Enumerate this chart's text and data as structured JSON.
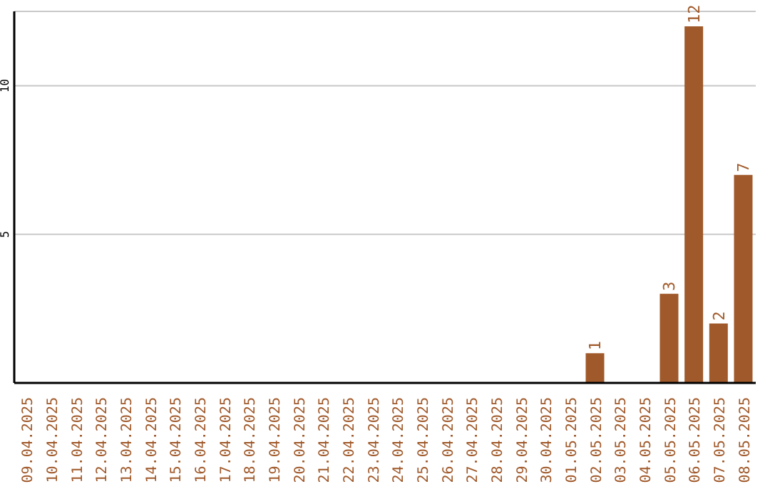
{
  "chart_data": {
    "type": "bar",
    "categories": [
      "09.04.2025",
      "10.04.2025",
      "11.04.2025",
      "12.04.2025",
      "13.04.2025",
      "14.04.2025",
      "15.04.2025",
      "16.04.2025",
      "17.04.2025",
      "18.04.2025",
      "19.04.2025",
      "20.04.2025",
      "21.04.2025",
      "22.04.2025",
      "23.04.2025",
      "24.04.2025",
      "25.04.2025",
      "26.04.2025",
      "27.04.2025",
      "28.04.2025",
      "29.04.2025",
      "30.04.2025",
      "01.05.2025",
      "02.05.2025",
      "03.05.2025",
      "04.05.2025",
      "05.05.2025",
      "06.05.2025",
      "07.05.2025",
      "08.05.2025"
    ],
    "values": [
      0,
      0,
      0,
      0,
      0,
      0,
      0,
      0,
      0,
      0,
      0,
      0,
      0,
      0,
      0,
      0,
      0,
      0,
      0,
      0,
      0,
      0,
      0,
      1,
      0,
      0,
      3,
      12,
      2,
      7
    ],
    "value_labels": [
      null,
      null,
      null,
      null,
      null,
      null,
      null,
      null,
      null,
      null,
      null,
      null,
      null,
      null,
      null,
      null,
      null,
      null,
      null,
      null,
      null,
      null,
      null,
      "1",
      null,
      null,
      "3",
      "12",
      "2",
      "7"
    ],
    "color": "#a0592a",
    "ylim": [
      0,
      12.5
    ],
    "yticks": [
      5,
      10
    ],
    "grid": "y"
  }
}
